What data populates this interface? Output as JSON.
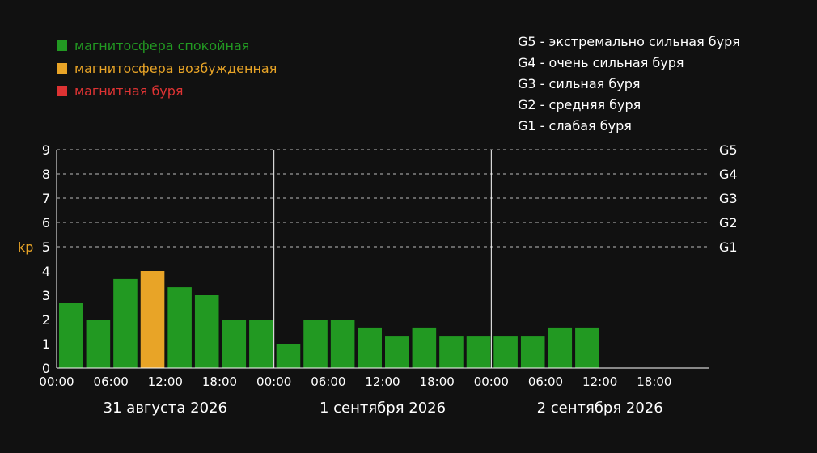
{
  "legend": [
    {
      "label": "магнитосфера спокойная",
      "color": "#229922"
    },
    {
      "label": "магнитосфера возбужденная",
      "color": "#e8a427"
    },
    {
      "label": "магнитная буря",
      "color": "#dd3333"
    }
  ],
  "storm_levels": [
    "G5 - экстремально сильная буря",
    "G4 - очень сильная буря",
    "G3 - сильная буря",
    "G2 - средняя буря",
    "G1 - слабая буря"
  ],
  "chart_data": {
    "type": "bar",
    "ylabel": "kp",
    "ylim": [
      0,
      9
    ],
    "yticks": [
      "0",
      "1",
      "2",
      "3",
      "4",
      "5",
      "6",
      "7",
      "8",
      "9"
    ],
    "grid": "dashed lines at 5–9",
    "right_labels": [
      {
        "value": 5,
        "label": "G1"
      },
      {
        "value": 6,
        "label": "G2"
      },
      {
        "value": 7,
        "label": "G3"
      },
      {
        "value": 8,
        "label": "G4"
      },
      {
        "value": 9,
        "label": "G5"
      }
    ],
    "time_ticks": [
      "00:00",
      "06:00",
      "12:00",
      "18:00",
      "00:00",
      "06:00",
      "12:00",
      "18:00",
      "00:00",
      "06:00",
      "12:00",
      "18:00"
    ],
    "days": [
      "31 августа 2026",
      "1 сентября 2026",
      "2 сентября 2026"
    ],
    "slots_total": 24,
    "values": [
      2.67,
      2.0,
      3.67,
      4.0,
      3.33,
      3.0,
      2.0,
      2.0,
      1.0,
      2.0,
      2.0,
      1.67,
      1.33,
      1.67,
      1.33,
      1.33,
      1.33,
      1.33,
      1.67,
      1.67
    ],
    "status": [
      "calm",
      "calm",
      "calm",
      "excited",
      "calm",
      "calm",
      "calm",
      "calm",
      "calm",
      "calm",
      "calm",
      "calm",
      "calm",
      "calm",
      "calm",
      "calm",
      "calm",
      "calm",
      "calm",
      "calm"
    ],
    "colors": {
      "calm": "#229922",
      "excited": "#e8a427",
      "storm": "#dd3333",
      "ylabel": "#e8a427",
      "grid": "#bbbbbb",
      "axis": "#ffffff"
    }
  }
}
